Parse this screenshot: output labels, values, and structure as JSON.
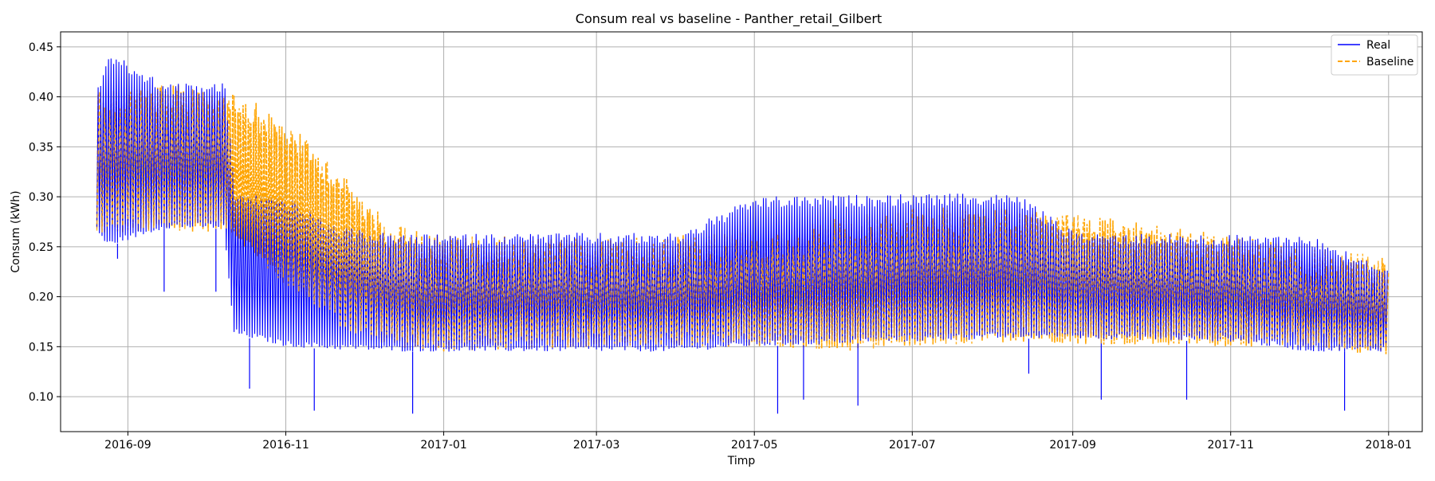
{
  "chart_data": {
    "type": "line",
    "title": "Consum real vs baseline - Panther_retail_Gilbert",
    "xlabel": "Timp",
    "ylabel": "Consum (kWh)",
    "x_range": [
      "2016-08-06",
      "2018-01-14"
    ],
    "ylim": [
      0.065,
      0.465
    ],
    "x_ticks": [
      {
        "date": "2016-09-01",
        "label": "2016-09"
      },
      {
        "date": "2016-11-01",
        "label": "2016-11"
      },
      {
        "date": "2017-01-01",
        "label": "2017-01"
      },
      {
        "date": "2017-03-01",
        "label": "2017-03"
      },
      {
        "date": "2017-05-01",
        "label": "2017-05"
      },
      {
        "date": "2017-07-01",
        "label": "2017-07"
      },
      {
        "date": "2017-09-01",
        "label": "2017-09"
      },
      {
        "date": "2017-11-01",
        "label": "2017-11"
      },
      {
        "date": "2018-01-01",
        "label": "2018-01"
      }
    ],
    "y_ticks": [
      0.1,
      0.15,
      0.2,
      0.25,
      0.3,
      0.35,
      0.4,
      0.45
    ],
    "grid": true,
    "legend_position": "top-right",
    "series": [
      {
        "name": "Real",
        "color": "#0000ff",
        "style": "solid",
        "envelope": [
          {
            "date": "2016-08-20",
            "low": 0.265,
            "high": 0.412
          },
          {
            "date": "2016-08-24",
            "low": 0.25,
            "high": 0.445
          },
          {
            "date": "2016-09-15",
            "low": 0.268,
            "high": 0.414
          },
          {
            "date": "2016-10-08",
            "low": 0.268,
            "high": 0.414
          },
          {
            "date": "2016-10-12",
            "low": 0.162,
            "high": 0.305
          },
          {
            "date": "2016-11-01",
            "low": 0.15,
            "high": 0.3
          },
          {
            "date": "2016-11-20",
            "low": 0.147,
            "high": 0.27
          },
          {
            "date": "2016-12-15",
            "low": 0.145,
            "high": 0.262
          },
          {
            "date": "2017-02-01",
            "low": 0.145,
            "high": 0.264
          },
          {
            "date": "2017-04-01",
            "low": 0.145,
            "high": 0.264
          },
          {
            "date": "2017-05-01",
            "low": 0.15,
            "high": 0.3
          },
          {
            "date": "2017-07-01",
            "low": 0.155,
            "high": 0.303
          },
          {
            "date": "2017-08-10",
            "low": 0.158,
            "high": 0.303
          },
          {
            "date": "2017-09-01",
            "low": 0.158,
            "high": 0.265
          },
          {
            "date": "2017-11-01",
            "low": 0.155,
            "high": 0.262
          },
          {
            "date": "2017-12-01",
            "low": 0.145,
            "high": 0.262
          },
          {
            "date": "2017-12-31",
            "low": 0.145,
            "high": 0.23
          }
        ]
      },
      {
        "name": "Baseline",
        "color": "#ffa500",
        "style": "dashed",
        "envelope": [
          {
            "date": "2016-08-20",
            "low": 0.262,
            "high": 0.41
          },
          {
            "date": "2016-09-15",
            "low": 0.265,
            "high": 0.412
          },
          {
            "date": "2016-10-10",
            "low": 0.265,
            "high": 0.41
          },
          {
            "date": "2016-11-01",
            "low": 0.21,
            "high": 0.375
          },
          {
            "date": "2016-11-20",
            "low": 0.17,
            "high": 0.33
          },
          {
            "date": "2016-12-10",
            "low": 0.15,
            "high": 0.275
          },
          {
            "date": "2017-01-01",
            "low": 0.145,
            "high": 0.262
          },
          {
            "date": "2017-03-01",
            "low": 0.15,
            "high": 0.258
          },
          {
            "date": "2017-05-01",
            "low": 0.15,
            "high": 0.265
          },
          {
            "date": "2017-06-01",
            "low": 0.145,
            "high": 0.278
          },
          {
            "date": "2017-07-01",
            "low": 0.15,
            "high": 0.29
          },
          {
            "date": "2017-08-10",
            "low": 0.155,
            "high": 0.288
          },
          {
            "date": "2017-09-10",
            "low": 0.152,
            "high": 0.28
          },
          {
            "date": "2017-11-01",
            "low": 0.15,
            "high": 0.262
          },
          {
            "date": "2017-12-01",
            "low": 0.15,
            "high": 0.25
          },
          {
            "date": "2017-12-31",
            "low": 0.14,
            "high": 0.24
          }
        ]
      }
    ],
    "annotations_dips_real": [
      {
        "date": "2016-08-28",
        "value": 0.238
      },
      {
        "date": "2016-09-15",
        "value": 0.205
      },
      {
        "date": "2016-10-05",
        "value": 0.205
      },
      {
        "date": "2016-10-18",
        "value": 0.108
      },
      {
        "date": "2016-11-12",
        "value": 0.086
      },
      {
        "date": "2016-12-20",
        "value": 0.083
      },
      {
        "date": "2017-05-10",
        "value": 0.083
      },
      {
        "date": "2017-05-20",
        "value": 0.097
      },
      {
        "date": "2017-06-10",
        "value": 0.091
      },
      {
        "date": "2017-08-15",
        "value": 0.123
      },
      {
        "date": "2017-09-12",
        "value": 0.097
      },
      {
        "date": "2017-10-15",
        "value": 0.097
      },
      {
        "date": "2017-12-15",
        "value": 0.086
      }
    ]
  }
}
